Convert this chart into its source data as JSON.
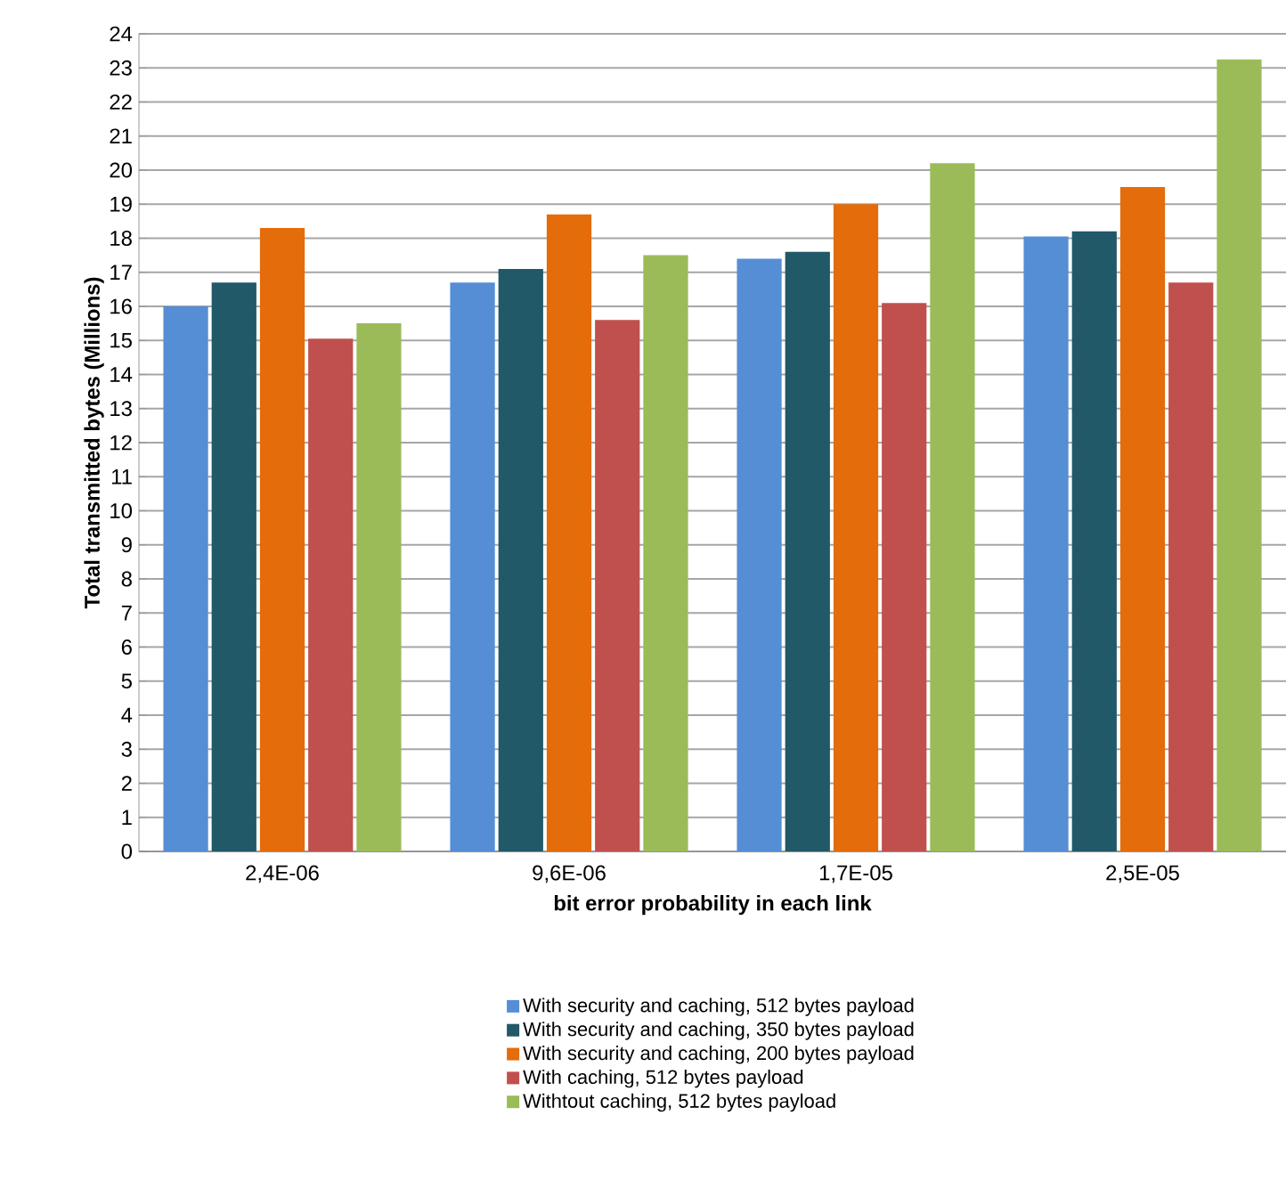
{
  "chart_data": {
    "type": "bar",
    "xlabel": "bit error probability in each link",
    "ylabel": "Total transmitted bytes (Millions)",
    "categories": [
      "2,4E-06",
      "9,6E-06",
      "1,7E-05",
      "2,5E-05"
    ],
    "series": [
      {
        "name": "With security and caching, 512 bytes payload",
        "color": "#558ed5",
        "values": [
          16.0,
          16.7,
          17.4,
          18.05
        ]
      },
      {
        "name": "With security and caching, 350 bytes payload",
        "color": "#215968",
        "values": [
          16.7,
          17.1,
          17.6,
          18.2
        ]
      },
      {
        "name": "With security and caching, 200 bytes payload",
        "color": "#e46c0a",
        "values": [
          18.3,
          18.7,
          19.0,
          19.5
        ]
      },
      {
        "name": "With caching, 512 bytes payload",
        "color": "#c0504d",
        "values": [
          15.05,
          15.6,
          16.1,
          16.7
        ]
      },
      {
        "name": "Withtout caching, 512 bytes payload",
        "color": "#9bbb59",
        "values": [
          15.5,
          17.5,
          20.2,
          23.25
        ]
      }
    ],
    "ylim": [
      0,
      24
    ],
    "yticks": [
      0,
      1,
      2,
      3,
      4,
      5,
      6,
      7,
      8,
      9,
      10,
      11,
      12,
      13,
      14,
      15,
      16,
      17,
      18,
      19,
      20,
      21,
      22,
      23,
      24
    ],
    "grid": "y",
    "legend": "bottom"
  }
}
